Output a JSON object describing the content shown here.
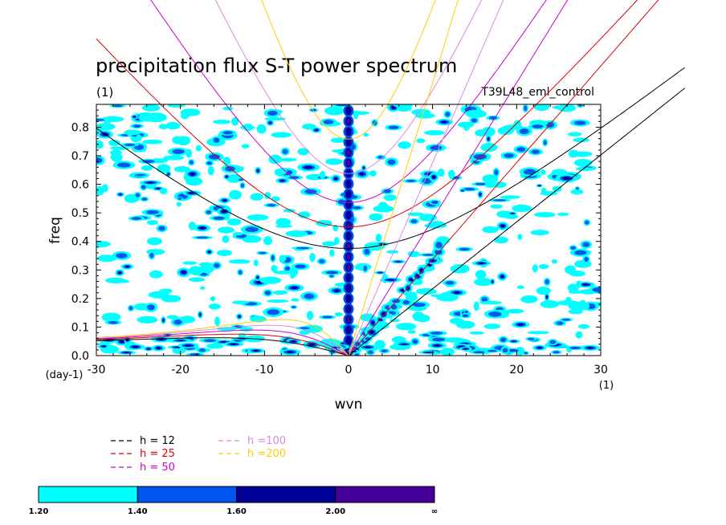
{
  "chart_data": {
    "type": "heatmap",
    "title": "precipitation flux S-T power spectrum",
    "subtitle_left": "(1)",
    "subtitle_right": "T39L48_eml_control",
    "xlabel": "wvn",
    "ylabel": "freq",
    "x_unit_label": "(1)",
    "y_unit_label": "(day-1)",
    "xlim": [
      -30,
      30
    ],
    "ylim": [
      0,
      0.88
    ],
    "xticks": [
      -30,
      -20,
      -10,
      0,
      10,
      20,
      30
    ],
    "xtick_labels": [
      "-30",
      "-20",
      "-10",
      "0",
      "10",
      "20",
      "30"
    ],
    "yticks": [
      0.0,
      0.1,
      0.2,
      0.3,
      0.4,
      0.5,
      0.6,
      0.7,
      0.8
    ],
    "ytick_labels": [
      "0.0",
      "0.1",
      "0.2",
      "0.3",
      "0.4",
      "0.5",
      "0.6",
      "0.7",
      "0.8"
    ],
    "dispersion_curves": [
      {
        "label": "h = 12",
        "equivalent_depth_m": 12,
        "color": "#000000"
      },
      {
        "label": "h = 25",
        "equivalent_depth_m": 25,
        "color": "#dd0000"
      },
      {
        "label": "h = 50",
        "equivalent_depth_m": 50,
        "color": "#cc00cc"
      },
      {
        "label": "h =100",
        "equivalent_depth_m": 100,
        "color": "#dd88dd"
      },
      {
        "label": "h =200",
        "equivalent_depth_m": 200,
        "color": "#ffcc00"
      }
    ],
    "colorbar": {
      "levels": [
        "1.20",
        "1.40",
        "1.60",
        "2.00",
        "∞"
      ],
      "colors": [
        "#00ffff",
        "#0055ee",
        "#000099",
        "#440099"
      ]
    },
    "legend_position": "bottom-left",
    "grid": false
  }
}
